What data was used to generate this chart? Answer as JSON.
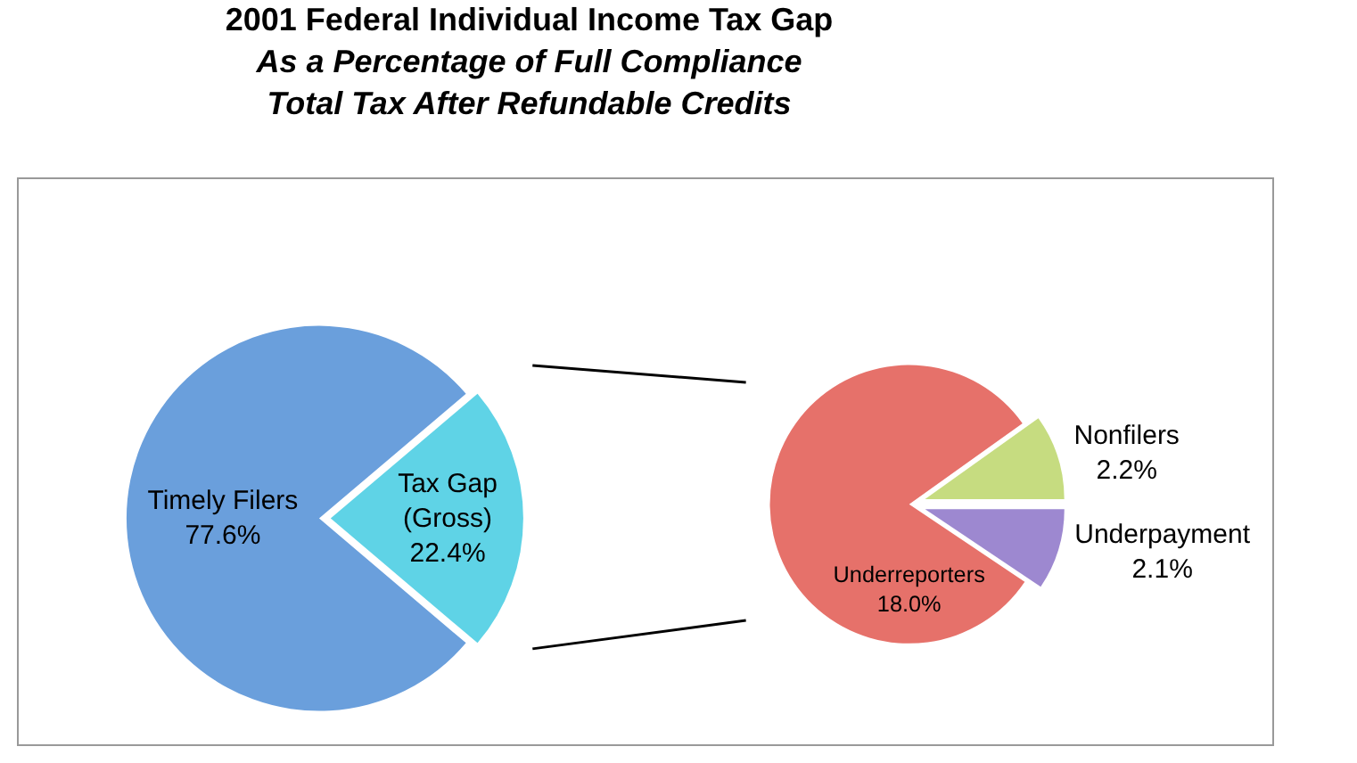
{
  "chart_data": [
    {
      "type": "pie",
      "title": "2001 Federal Individual Income Tax Gap",
      "subtitle": "As a Percentage of Full Compliance Total Tax After Refundable Credits",
      "categories": [
        "Tax Gap (Gross)",
        "Timely Filers"
      ],
      "values": [
        22.4,
        77.6
      ],
      "value_labels": [
        "22.4%",
        "77.6%"
      ],
      "colors": [
        "#5fd3e6",
        "#6a9fdc"
      ]
    },
    {
      "type": "pie",
      "categories": [
        "Nonfilers",
        "Underpayment",
        "Underreporters"
      ],
      "values": [
        2.2,
        2.1,
        18.0
      ],
      "value_labels": [
        "2.2%",
        "2.1%",
        "18.0%"
      ],
      "colors": [
        "#c6dc80",
        "#9d88d0",
        "#e6716a"
      ]
    }
  ]
}
